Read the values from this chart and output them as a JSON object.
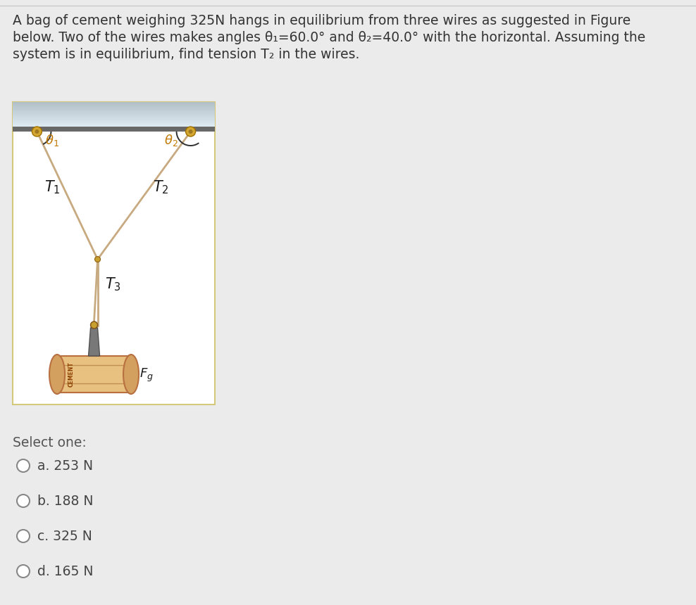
{
  "bg_color": "#ebebeb",
  "fig_border_color": "#d4c87a",
  "ceiling_color_top": "#ddeaf2",
  "ceiling_color_bot": "#b0bec5",
  "ceiling_bar_color": "#686868",
  "wire_color": "#c8aa80",
  "anchor_color": "#d4a830",
  "anchor_inner": "#a07820",
  "knot_color": "#c8a030",
  "hook_color": "#787878",
  "hook_dark": "#505050",
  "ring_color": "#c8a030",
  "bag_body": "#e8c080",
  "bag_end": "#d4a060",
  "bag_stripe": "#c09050",
  "bag_edge": "#b87040",
  "bag_text_color": "#8b4000",
  "label_theta_color": "#c07800",
  "label_T_color": "#1a1a1a",
  "label_Fg_color": "#1a1a1a",
  "select_color": "#555555",
  "option_color": "#444444",
  "text_color": "#333333",
  "question_lines": [
    "A bag of cement weighing 325N hangs in equilibrium from three wires as suggested in Figure",
    "below. Two of the wires makes angles θ₁=60.0° and θ₂=40.0° with the horizontal. Assuming the",
    "system is in equilibrium, find tension T₂ in the wires."
  ],
  "options": [
    "a. 253 N",
    "b. 188 N",
    "c. 325 N",
    "d. 165 N"
  ]
}
